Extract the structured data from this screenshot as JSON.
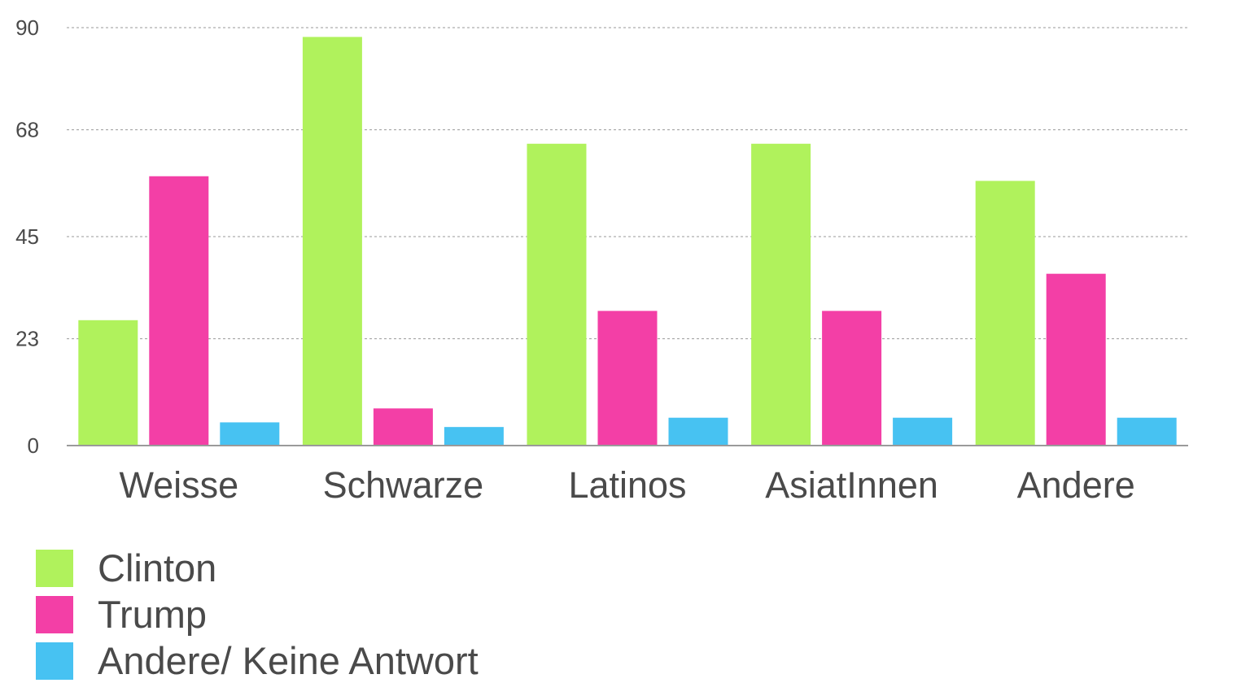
{
  "chart_data": {
    "type": "bar",
    "categories": [
      "Weisse",
      "Schwarze",
      "Latinos",
      "AsiatInnen",
      "Andere"
    ],
    "series": [
      {
        "name": "Clinton",
        "color": "#b0f25c",
        "values": [
          27,
          88,
          65,
          65,
          57
        ]
      },
      {
        "name": "Trump",
        "color": "#f33fa6",
        "values": [
          58,
          8,
          29,
          29,
          37
        ]
      },
      {
        "name": "Andere/ Keine Antwort",
        "color": "#47c2f2",
        "values": [
          5,
          4,
          6,
          6,
          6
        ]
      }
    ],
    "yticks": [
      "0",
      "23",
      "45",
      "68",
      "90"
    ],
    "ylim": [
      0,
      90
    ],
    "grid": true,
    "legend_position": "bottom-left"
  }
}
